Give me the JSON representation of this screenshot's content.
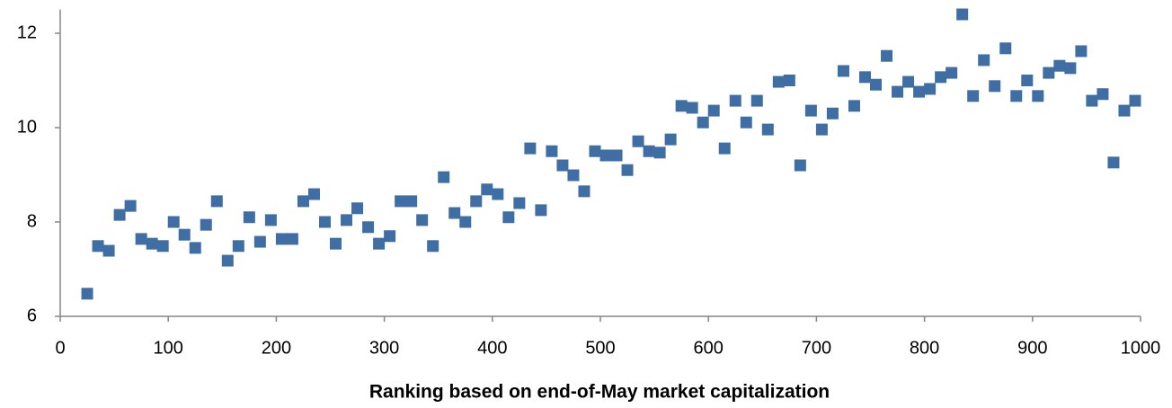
{
  "chart_data": {
    "type": "scatter",
    "x_label": "Ranking based on end-of-May market capitalization",
    "xlim": [
      0,
      1000
    ],
    "xticks": [
      0,
      100,
      200,
      300,
      400,
      500,
      600,
      700,
      800,
      900,
      1000
    ],
    "ylim": [
      6,
      12.5
    ],
    "yticks": [
      6,
      8,
      10,
      12
    ],
    "color": "#3f6ea5",
    "x": [
      25,
      35,
      45,
      55,
      65,
      75,
      85,
      95,
      105,
      115,
      125,
      135,
      145,
      155,
      165,
      175,
      185,
      195,
      205,
      215,
      225,
      235,
      245,
      255,
      265,
      275,
      285,
      295,
      305,
      315,
      325,
      335,
      345,
      355,
      365,
      375,
      385,
      395,
      405,
      415,
      425,
      435,
      445,
      455,
      465,
      475,
      485,
      495,
      505,
      515,
      525,
      535,
      545,
      555,
      565,
      575,
      585,
      595,
      605,
      615,
      625,
      635,
      645,
      655,
      665,
      675,
      685,
      695,
      705,
      715,
      725,
      735,
      745,
      755,
      765,
      775,
      785,
      795,
      805,
      815,
      825,
      835,
      845,
      855,
      865,
      875,
      885,
      895,
      905,
      915,
      925,
      935,
      945,
      955,
      965,
      975,
      985,
      995
    ],
    "values": [
      6.48,
      7.49,
      7.39,
      8.15,
      8.34,
      7.64,
      7.54,
      7.49,
      8.0,
      7.73,
      7.45,
      7.94,
      8.44,
      7.18,
      7.49,
      8.1,
      7.58,
      8.04,
      7.64,
      7.64,
      8.44,
      8.59,
      8.0,
      7.54,
      8.04,
      8.29,
      7.89,
      7.54,
      7.7,
      8.44,
      8.44,
      8.04,
      7.49,
      8.95,
      8.19,
      8.0,
      8.44,
      8.69,
      8.59,
      8.1,
      8.4,
      9.56,
      8.25,
      9.5,
      9.2,
      8.99,
      8.65,
      9.5,
      9.41,
      9.41,
      9.1,
      9.71,
      9.5,
      9.47,
      9.75,
      10.46,
      10.42,
      10.11,
      10.36,
      9.56,
      10.57,
      10.11,
      10.57,
      9.96,
      10.97,
      11.0,
      9.2,
      10.36,
      9.96,
      10.3,
      11.2,
      10.46,
      11.07,
      10.91,
      11.52,
      10.76,
      10.97,
      10.76,
      10.82,
      11.07,
      11.16,
      12.4,
      10.67,
      11.43,
      10.88,
      11.68,
      10.67,
      11.0,
      10.67,
      11.16,
      11.31,
      11.26,
      11.62,
      10.57,
      10.71,
      9.26,
      10.36,
      10.57
    ]
  }
}
